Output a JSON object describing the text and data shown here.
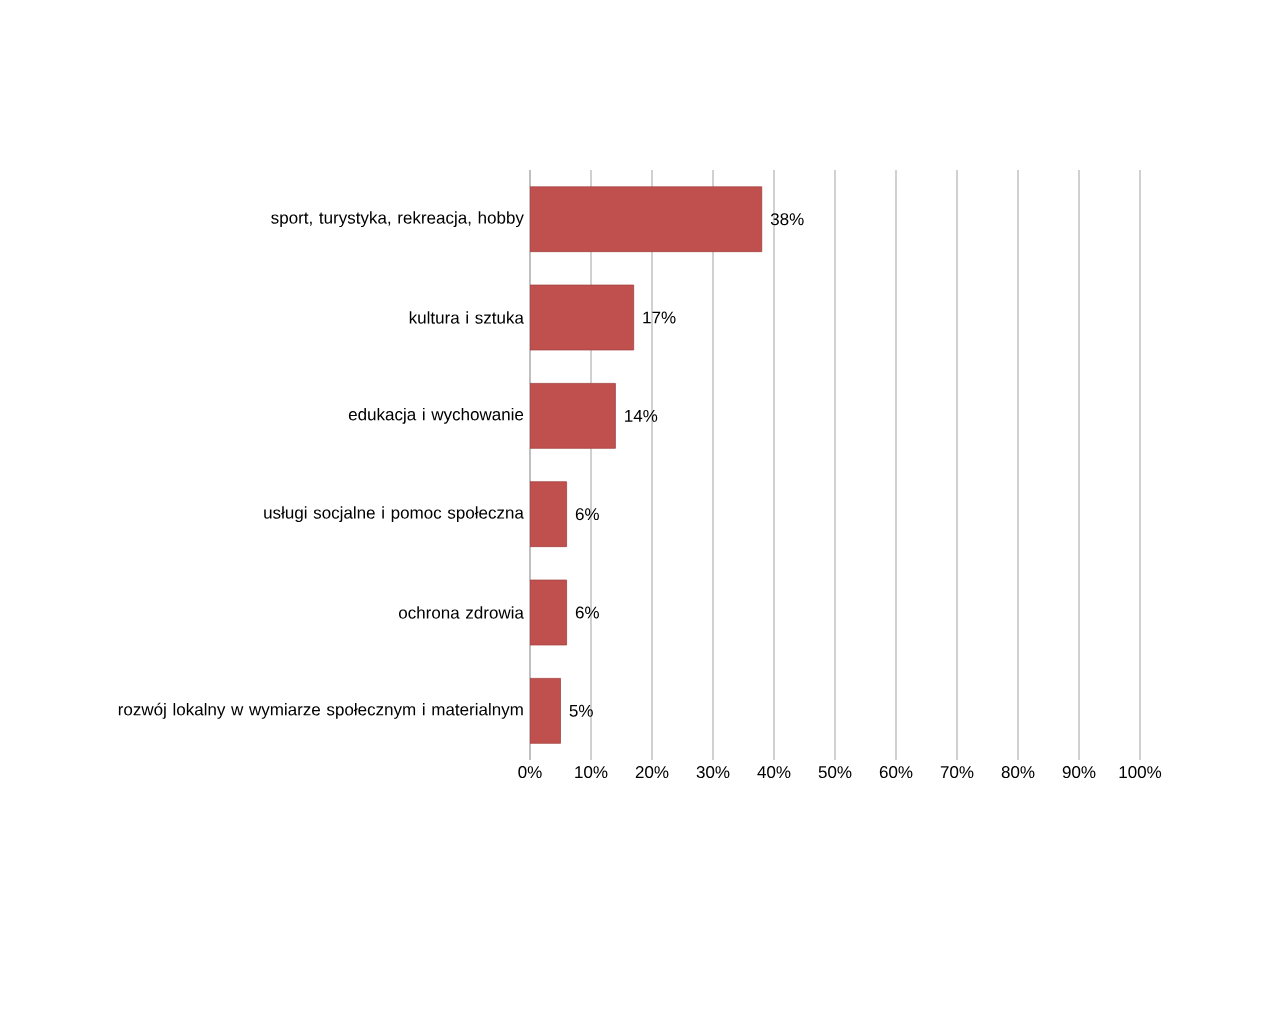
{
  "chart_data": {
    "type": "bar",
    "orientation": "horizontal",
    "categories": [
      "sport, turystyka, rekreacja, hobby",
      "kultura i sztuka",
      "edukacja i wychowanie",
      "usługi socjalne i pomoc społeczna",
      "ochrona zdrowia",
      "rozwój lokalny w wymiarze społecznym i materialnym"
    ],
    "values": [
      38,
      17,
      14,
      6,
      6,
      5
    ],
    "value_labels": [
      "38%",
      "17%",
      "14%",
      "6%",
      "6%",
      "5%"
    ],
    "color": "#c0504d",
    "xlim": [
      0,
      100
    ],
    "xticks": [
      {
        "value": 0,
        "label": "0%"
      },
      {
        "value": 10,
        "label": "10%"
      },
      {
        "value": 20,
        "label": "20%"
      },
      {
        "value": 30,
        "label": "30%"
      },
      {
        "value": 40,
        "label": "40%"
      },
      {
        "value": 50,
        "label": "50%"
      },
      {
        "value": 60,
        "label": "60%"
      },
      {
        "value": 70,
        "label": "70%"
      },
      {
        "value": 80,
        "label": "80%"
      },
      {
        "value": 90,
        "label": "90%"
      },
      {
        "value": 100,
        "label": "100%"
      }
    ],
    "grid": "x"
  }
}
